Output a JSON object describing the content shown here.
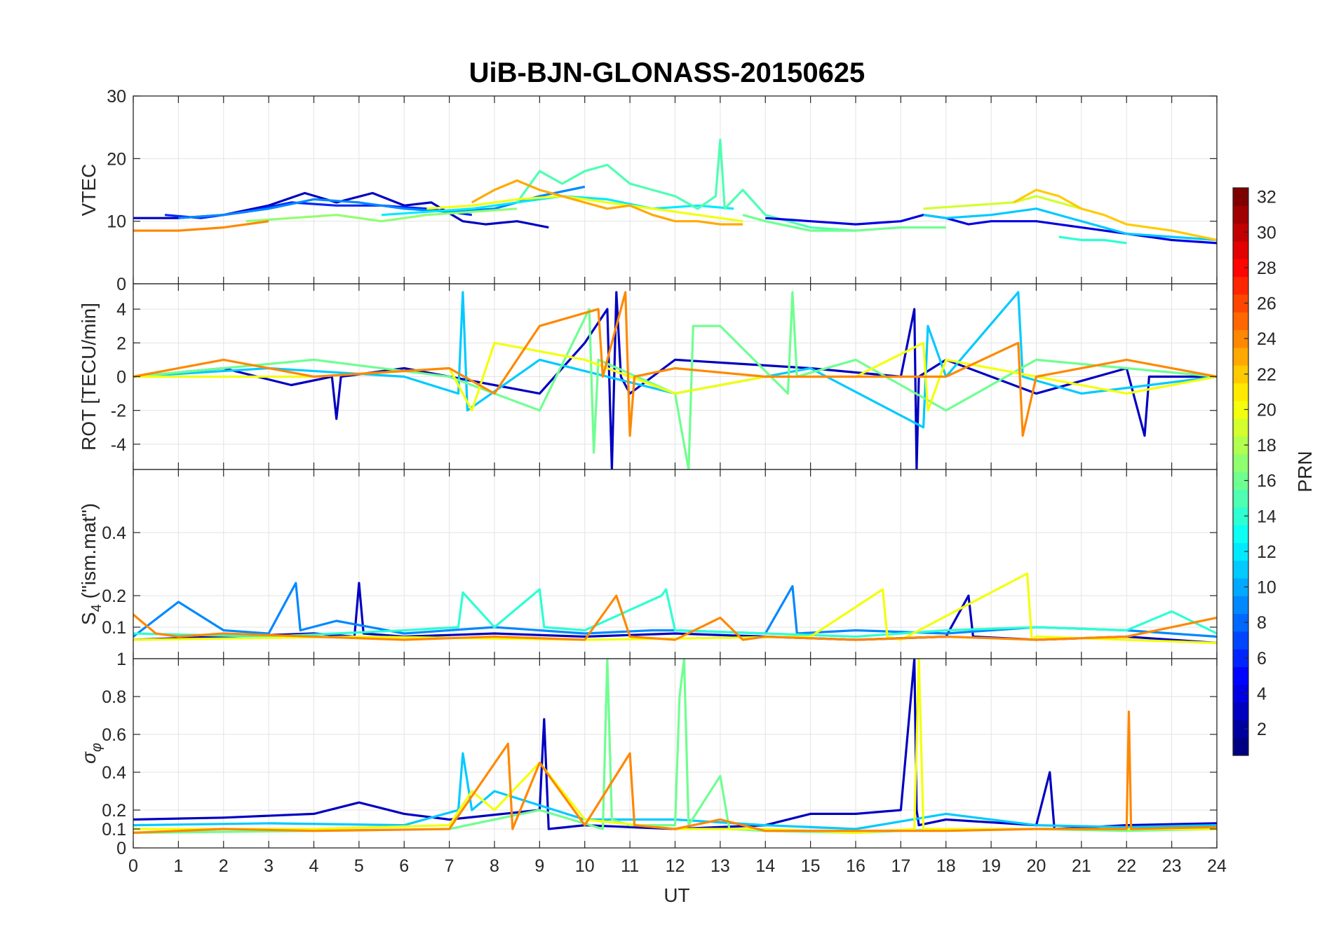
{
  "figure": {
    "title": "UiB-BJN-GLONASS-20150625",
    "xlabel": "UT"
  },
  "chart_data": [
    {
      "type": "line",
      "panel": "vtec",
      "ylabel": "VTEC",
      "ylim": [
        0,
        30
      ],
      "yticks": [
        0,
        10,
        20,
        30
      ],
      "xlim": [
        0,
        24
      ],
      "grid": true,
      "series": [
        {
          "prn": 3,
          "x": [
            0,
            1,
            2,
            3,
            3.8,
            4.5,
            5.3,
            6,
            6.6,
            7.3,
            7.8,
            8.5,
            9.2
          ],
          "y": [
            10.5,
            10.5,
            11,
            12.5,
            14.5,
            13,
            14.5,
            12.5,
            13,
            10,
            9.5,
            10,
            9
          ]
        },
        {
          "prn": 6,
          "x": [
            0.7,
            1.5,
            2.5,
            3.5,
            4.5,
            5.5,
            6.5,
            7.5
          ],
          "y": [
            11,
            10.5,
            11.5,
            13,
            12.5,
            12.5,
            12,
            11
          ]
        },
        {
          "prn": 9,
          "x": [
            1,
            2,
            3,
            4,
            5,
            6,
            7,
            8,
            9,
            10
          ],
          "y": [
            10.5,
            11,
            12,
            13.5,
            13,
            12,
            11.5,
            12,
            14,
            15.5
          ]
        },
        {
          "prn": 12,
          "x": [
            5.5,
            6.5,
            7.5,
            8.5,
            9.5,
            10.5,
            11.5,
            12.5,
            13.3
          ],
          "y": [
            11,
            11.5,
            12,
            13,
            14,
            13.5,
            12,
            12.5,
            12
          ]
        },
        {
          "prn": 15,
          "x": [
            8.5,
            9,
            9.5,
            10,
            10.5,
            11,
            11.5,
            12,
            12.5,
            12.9,
            13,
            13.1,
            13.5,
            14,
            15,
            16
          ],
          "y": [
            13,
            18,
            16,
            18,
            19,
            16,
            15,
            14,
            12,
            14,
            23,
            12,
            15,
            11,
            9,
            8.5
          ]
        },
        {
          "prn": 17,
          "x": [
            2.5,
            3.5,
            4.5,
            5.5,
            6.5,
            7.5,
            8.5
          ],
          "y": [
            10,
            10.5,
            11,
            10,
            11,
            11.5,
            12
          ]
        },
        {
          "prn": 20,
          "x": [
            6.5,
            7.5,
            8.5,
            9.5,
            10.5,
            11.5,
            12.5,
            13.5
          ],
          "y": [
            12,
            12.5,
            13.5,
            14,
            13,
            12,
            11,
            10
          ]
        },
        {
          "prn": 23,
          "x": [
            7.5,
            8,
            8.5,
            9,
            9.5,
            10,
            10.5,
            11,
            11.5,
            12,
            12.5,
            13,
            13.5
          ],
          "y": [
            13,
            15,
            16.5,
            15,
            14,
            13,
            12,
            12.5,
            11,
            10,
            10,
            9.5,
            9.5
          ]
        },
        {
          "prn": 24,
          "x": [
            0,
            1,
            2,
            3
          ],
          "y": [
            8.5,
            8.5,
            9,
            10
          ]
        },
        {
          "prn": 4,
          "x": [
            14,
            15,
            16,
            17,
            17.5,
            18,
            18.5,
            19,
            20,
            21,
            22,
            23,
            24
          ],
          "y": [
            10.5,
            10,
            9.5,
            10,
            11,
            10.5,
            9.5,
            10,
            10,
            9,
            8,
            7,
            6.5
          ]
        },
        {
          "prn": 11,
          "x": [
            17.5,
            18,
            19,
            20,
            21,
            22,
            23,
            24
          ],
          "y": [
            11,
            10.5,
            11,
            12,
            10,
            8,
            7.5,
            7
          ]
        },
        {
          "prn": 16,
          "x": [
            13.5,
            14,
            15,
            16,
            17,
            18
          ],
          "y": [
            11,
            10,
            8.5,
            8.5,
            9,
            9
          ]
        },
        {
          "prn": 19,
          "x": [
            17.5,
            18.5,
            19.5,
            20,
            20.5,
            21
          ],
          "y": [
            12,
            12.5,
            13,
            14,
            13,
            12
          ]
        },
        {
          "prn": 22,
          "x": [
            19.5,
            20,
            20.5,
            21,
            21.5,
            22,
            22.5,
            23,
            24
          ],
          "y": [
            13,
            15,
            14,
            12,
            11,
            9.5,
            9,
            8.5,
            7
          ]
        },
        {
          "prn": 14,
          "x": [
            20.5,
            21,
            21.5,
            22
          ],
          "y": [
            7.5,
            7,
            7,
            6.5
          ]
        }
      ]
    },
    {
      "type": "line",
      "panel": "rot",
      "ylabel": "ROT [TECU/min]",
      "ylim": [
        -5.5,
        5.5
      ],
      "yticks": [
        -4,
        -2,
        0,
        2,
        4
      ],
      "xlim": [
        0,
        24
      ],
      "grid": true,
      "series": [
        {
          "prn": 3,
          "x": [
            0,
            2,
            3.5,
            4.4,
            4.5,
            4.6,
            6,
            7,
            9,
            10,
            10.5,
            10.6,
            10.7,
            10.8,
            11,
            12,
            15,
            17,
            17.3,
            17.35,
            17.4,
            18,
            20,
            22,
            22.4,
            22.5,
            24
          ],
          "y": [
            0,
            0.5,
            -0.5,
            0,
            -2.5,
            0,
            0.5,
            0,
            -1,
            2,
            4,
            -5.5,
            5,
            0,
            -1,
            1,
            0.5,
            0,
            4,
            -5.5,
            0,
            1,
            -1,
            0.5,
            -3.5,
            0,
            0
          ]
        },
        {
          "prn": 11,
          "x": [
            0,
            3,
            6,
            7.2,
            7.3,
            7.4,
            9,
            12,
            15,
            17.5,
            17.6,
            18,
            19.6,
            19.7,
            21,
            24
          ],
          "y": [
            0,
            0.5,
            0,
            -1,
            5,
            -2,
            1,
            -1,
            0.5,
            -3,
            3,
            0,
            5,
            0,
            -1,
            0
          ]
        },
        {
          "prn": 16,
          "x": [
            0,
            4,
            7,
            9,
            10.1,
            10.2,
            10.3,
            12,
            12.3,
            12.4,
            13,
            14.5,
            14.6,
            14.7,
            16,
            18,
            20,
            24
          ],
          "y": [
            0,
            1,
            0,
            -2,
            4,
            -4.5,
            1,
            -1,
            -5.5,
            3,
            3,
            -1,
            5,
            0,
            1,
            -2,
            1,
            0
          ]
        },
        {
          "prn": 20,
          "x": [
            0,
            4,
            7,
            7.5,
            8,
            10,
            12,
            14,
            16,
            17.5,
            17.6,
            18,
            20,
            22,
            24
          ],
          "y": [
            0,
            0,
            0.5,
            -2,
            2,
            1,
            -1,
            0,
            0,
            2,
            -2,
            1,
            0,
            -1,
            0
          ]
        },
        {
          "prn": 24,
          "x": [
            0,
            2,
            4,
            7,
            8,
            9,
            10.3,
            10.4,
            10.9,
            11,
            11.1,
            12,
            14,
            18,
            19.6,
            19.7,
            20,
            22,
            24
          ],
          "y": [
            0,
            1,
            0,
            0.5,
            -1,
            3,
            4,
            0,
            5,
            -3.5,
            0,
            0.5,
            0,
            0,
            2,
            -3.5,
            0,
            1,
            0
          ]
        }
      ]
    },
    {
      "type": "line",
      "panel": "s4",
      "ylabel": "S4 (\"ism.mat\")",
      "ylim": [
        0,
        0.6
      ],
      "yticks": [
        0.1,
        0.2,
        0.4
      ],
      "xlim": [
        0,
        24
      ],
      "grid": true,
      "series": [
        {
          "prn": 3,
          "x": [
            0,
            2,
            4,
            4.9,
            5,
            5.1,
            6,
            8,
            10,
            12,
            14,
            16,
            18,
            18.5,
            18.6,
            20,
            22,
            24
          ],
          "y": [
            0.06,
            0.07,
            0.08,
            0.07,
            0.24,
            0.08,
            0.07,
            0.08,
            0.07,
            0.08,
            0.07,
            0.06,
            0.07,
            0.2,
            0.07,
            0.06,
            0.07,
            0.05
          ]
        },
        {
          "prn": 9,
          "x": [
            0,
            1,
            2,
            3,
            3.6,
            3.7,
            4.5,
            6,
            8,
            10,
            11.5,
            12,
            14,
            14.6,
            14.7,
            16,
            18,
            20,
            22,
            24
          ],
          "y": [
            0.07,
            0.18,
            0.09,
            0.08,
            0.24,
            0.09,
            0.12,
            0.08,
            0.1,
            0.08,
            0.09,
            0.09,
            0.08,
            0.23,
            0.08,
            0.09,
            0.08,
            0.1,
            0.09,
            0.07
          ]
        },
        {
          "prn": 14,
          "x": [
            0,
            3,
            6,
            7.2,
            7.3,
            8,
            9,
            9.1,
            10,
            11.7,
            11.8,
            12,
            14,
            16,
            18,
            20,
            22,
            23,
            24
          ],
          "y": [
            0.08,
            0.07,
            0.09,
            0.1,
            0.21,
            0.1,
            0.22,
            0.1,
            0.09,
            0.2,
            0.22,
            0.09,
            0.08,
            0.07,
            0.09,
            0.1,
            0.09,
            0.15,
            0.08
          ]
        },
        {
          "prn": 20,
          "x": [
            0,
            5,
            10,
            15,
            16.6,
            16.7,
            17,
            19.8,
            19.9,
            20,
            22,
            24
          ],
          "y": [
            0.06,
            0.07,
            0.06,
            0.07,
            0.22,
            0.07,
            0.06,
            0.27,
            0.06,
            0.07,
            0.06,
            0.05
          ]
        },
        {
          "prn": 24,
          "x": [
            0,
            0.5,
            1,
            2,
            4,
            6,
            8,
            10,
            10.7,
            11,
            12,
            13,
            13.5,
            14,
            16,
            18,
            20,
            22,
            24
          ],
          "y": [
            0.14,
            0.08,
            0.07,
            0.08,
            0.07,
            0.06,
            0.07,
            0.06,
            0.2,
            0.07,
            0.06,
            0.13,
            0.06,
            0.07,
            0.06,
            0.07,
            0.06,
            0.07,
            0.13
          ]
        }
      ]
    },
    {
      "type": "line",
      "panel": "sigma_phi",
      "ylabel": "σ φ",
      "ylim": [
        0,
        1
      ],
      "yticks": [
        0,
        0.1,
        0.2,
        0.4,
        0.6,
        0.8
      ],
      "yticks_top": "1",
      "xlim": [
        0,
        24
      ],
      "grid": true,
      "series": [
        {
          "prn": 3,
          "x": [
            0,
            2,
            4,
            5,
            6,
            7,
            9,
            9.1,
            9.2,
            10,
            12,
            14,
            15,
            16,
            17,
            17.3,
            17.35,
            17.4,
            18,
            20,
            20.3,
            20.4,
            22,
            24
          ],
          "y": [
            0.15,
            0.16,
            0.18,
            0.24,
            0.18,
            0.15,
            0.2,
            0.68,
            0.1,
            0.12,
            0.1,
            0.12,
            0.18,
            0.18,
            0.2,
            1,
            0.2,
            0.12,
            0.15,
            0.12,
            0.4,
            0.1,
            0.12,
            0.13
          ]
        },
        {
          "prn": 11,
          "x": [
            0,
            3,
            6,
            7.2,
            7.3,
            7.5,
            8,
            10,
            12,
            14,
            16,
            18,
            20,
            22,
            24
          ],
          "y": [
            0.12,
            0.13,
            0.12,
            0.2,
            0.5,
            0.2,
            0.3,
            0.15,
            0.15,
            0.12,
            0.1,
            0.18,
            0.12,
            0.11,
            0.12
          ]
        },
        {
          "prn": 16,
          "x": [
            0,
            4,
            7,
            9,
            10.4,
            10.5,
            10.6,
            11,
            12,
            12.1,
            12.2,
            12.3,
            13,
            13.2,
            14,
            16,
            18,
            20,
            22,
            24
          ],
          "y": [
            0.08,
            0.09,
            0.1,
            0.2,
            0.1,
            1,
            0.15,
            0.12,
            0.12,
            0.8,
            1,
            0.12,
            0.38,
            0.1,
            0.09,
            0.08,
            0.1,
            0.1,
            0.09,
            0.1
          ]
        },
        {
          "prn": 20,
          "x": [
            0,
            4,
            7,
            7.5,
            8,
            9,
            10,
            12,
            14,
            16,
            17.3,
            17.4,
            17.5,
            18,
            20,
            22,
            24
          ],
          "y": [
            0.1,
            0.1,
            0.12,
            0.3,
            0.2,
            0.45,
            0.15,
            0.1,
            0.1,
            0.08,
            0.1,
            1,
            0.1,
            0.1,
            0.1,
            0.1,
            0.1
          ]
        },
        {
          "prn": 24,
          "x": [
            0,
            2,
            4,
            7,
            8.3,
            8.4,
            9,
            10,
            11,
            11.1,
            12,
            13,
            14,
            18,
            20,
            22,
            22.05,
            22.1,
            24
          ],
          "y": [
            0.08,
            0.1,
            0.09,
            0.1,
            0.55,
            0.1,
            0.45,
            0.12,
            0.5,
            0.12,
            0.1,
            0.15,
            0.09,
            0.09,
            0.1,
            0.1,
            0.72,
            0.1,
            0.11
          ]
        }
      ]
    }
  ],
  "colorbar": {
    "label": "PRN",
    "range": [
      1,
      32
    ],
    "ticks": [
      2,
      4,
      6,
      8,
      10,
      12,
      14,
      16,
      18,
      20,
      22,
      24,
      26,
      28,
      30,
      32
    ],
    "colormap": "jet"
  }
}
